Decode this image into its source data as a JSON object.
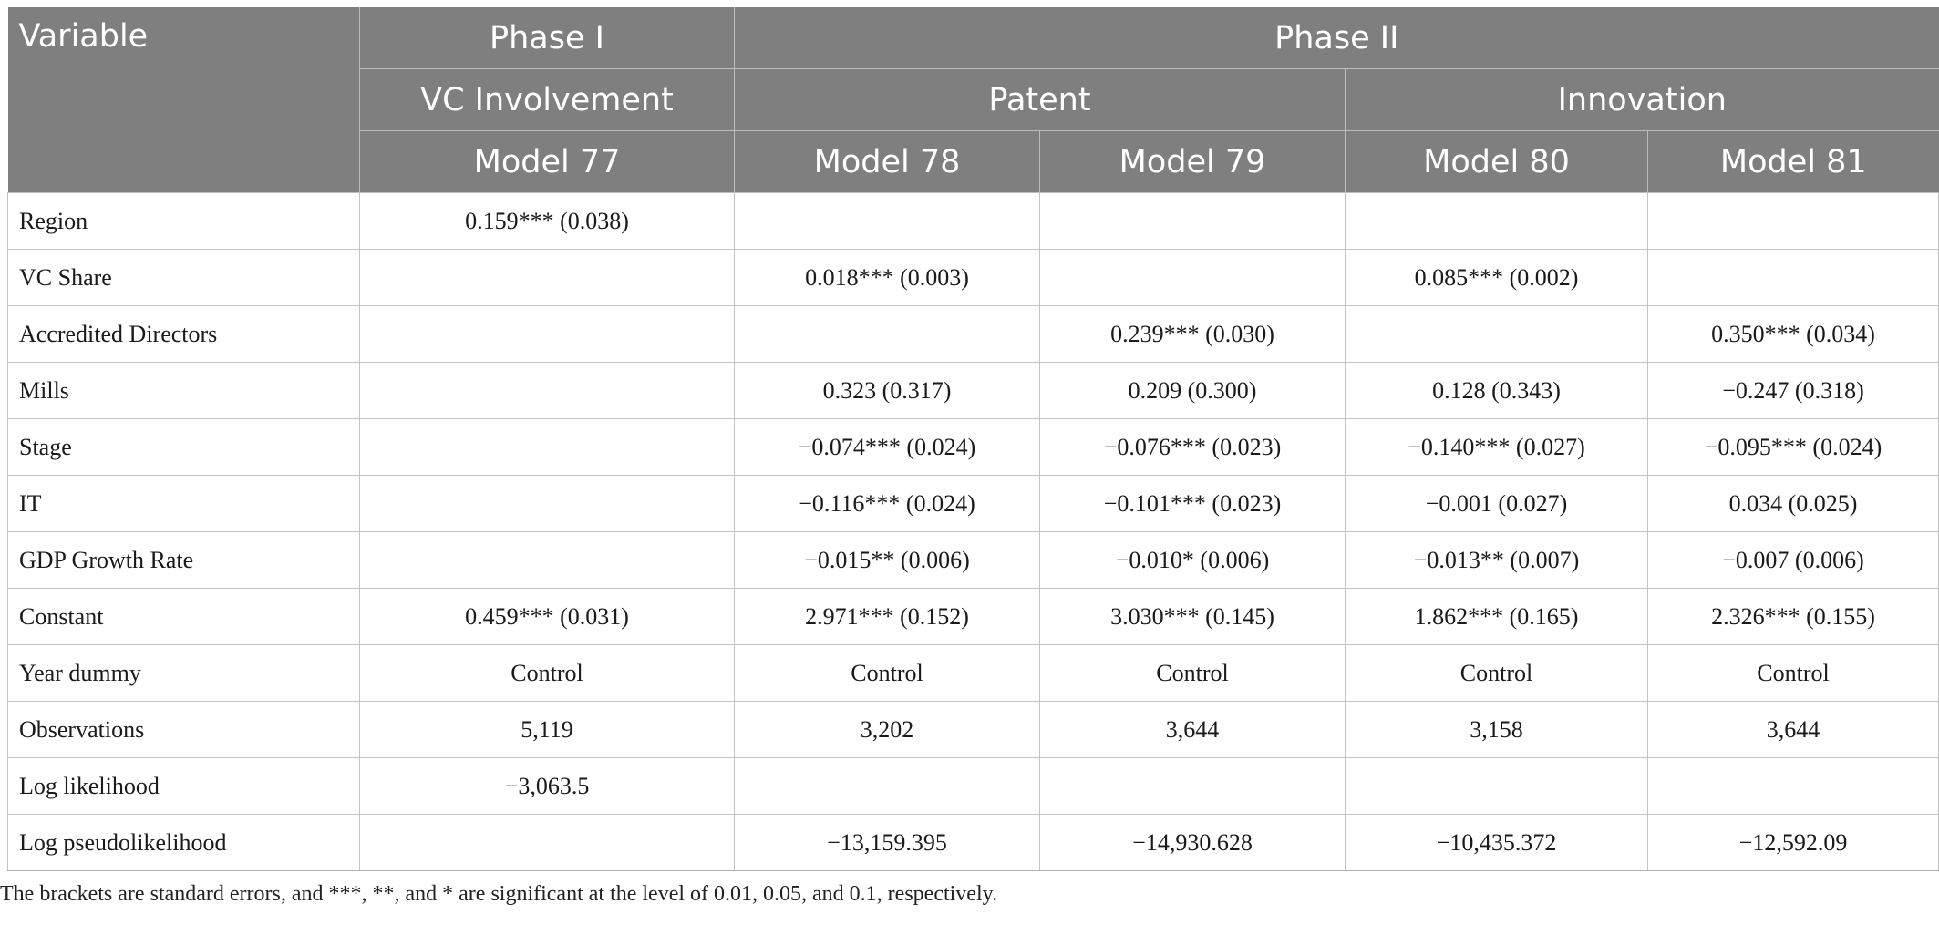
{
  "header": {
    "variable_label": "Variable",
    "phase1": "Phase I",
    "phase2": "Phase II",
    "vc_involvement": "VC Involvement",
    "patent": "Patent",
    "innovation": "Innovation",
    "models": [
      "Model 77",
      "Model 78",
      "Model 79",
      "Model 80",
      "Model 81"
    ]
  },
  "rows": [
    {
      "label": "Region",
      "cells": [
        "0.159*** (0.038)",
        "",
        "",
        "",
        ""
      ]
    },
    {
      "label": "VC Share",
      "cells": [
        "",
        "0.018*** (0.003)",
        "",
        "0.085*** (0.002)",
        ""
      ]
    },
    {
      "label": "Accredited Directors",
      "cells": [
        "",
        "",
        "0.239*** (0.030)",
        "",
        "0.350*** (0.034)"
      ]
    },
    {
      "label": "Mills",
      "cells": [
        "",
        "0.323 (0.317)",
        "0.209 (0.300)",
        "0.128 (0.343)",
        "−0.247 (0.318)"
      ]
    },
    {
      "label": "Stage",
      "cells": [
        "",
        "−0.074*** (0.024)",
        "−0.076*** (0.023)",
        "−0.140*** (0.027)",
        "−0.095*** (0.024)"
      ]
    },
    {
      "label": "IT",
      "cells": [
        "",
        "−0.116*** (0.024)",
        "−0.101*** (0.023)",
        "−0.001 (0.027)",
        "0.034 (0.025)"
      ]
    },
    {
      "label": "GDP Growth Rate",
      "cells": [
        "",
        "−0.015** (0.006)",
        "−0.010* (0.006)",
        "−0.013** (0.007)",
        "−0.007 (0.006)"
      ]
    },
    {
      "label": "Constant",
      "cells": [
        "0.459*** (0.031)",
        "2.971*** (0.152)",
        "3.030*** (0.145)",
        "1.862*** (0.165)",
        "2.326*** (0.155)"
      ]
    },
    {
      "label": "Year dummy",
      "cells": [
        "Control",
        "Control",
        "Control",
        "Control",
        "Control"
      ]
    },
    {
      "label": "Observations",
      "cells": [
        "5,119",
        "3,202",
        "3,644",
        "3,158",
        "3,644"
      ]
    },
    {
      "label": "Log likelihood",
      "cells": [
        "−3,063.5",
        "",
        "",
        "",
        ""
      ]
    },
    {
      "label": "Log pseudolikelihood",
      "cells": [
        "",
        "−13,159.395",
        "−14,930.628",
        "−10,435.372",
        "−12,592.09"
      ]
    }
  ],
  "footnote": "The brackets are standard errors, and ***, **, and * are significant at the level of 0.01, 0.05, and 0.1, respectively."
}
